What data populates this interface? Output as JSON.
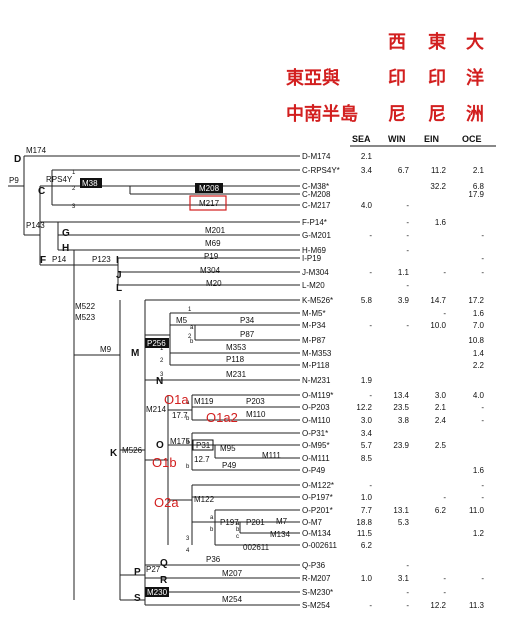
{
  "header": {
    "chinese_labels": [
      {
        "text": "東亞與",
        "color": "#d21f1f"
      },
      {
        "text": "中南半島",
        "color": "#d21f1f"
      },
      {
        "text": "西",
        "color": "#d21f1f"
      },
      {
        "text": "印",
        "color": "#d21f1f"
      },
      {
        "text": "尼",
        "color": "#d21f1f"
      },
      {
        "text": "東",
        "color": "#d21f1f"
      },
      {
        "text": "印",
        "color": "#d21f1f"
      },
      {
        "text": "尼",
        "color": "#d21f1f"
      },
      {
        "text": "大",
        "color": "#d21f1f"
      },
      {
        "text": "洋",
        "color": "#d21f1f"
      },
      {
        "text": "洲",
        "color": "#d21f1f"
      }
    ],
    "columns": [
      "SEA",
      "WIN",
      "EIN",
      "OCE"
    ]
  },
  "rows": [
    {
      "name": "D-M174",
      "sea": "2.1",
      "win": "",
      "ein": "",
      "oce": ""
    },
    {
      "name": "C-RPS4Y*",
      "sea": "3.4",
      "win": "6.7",
      "ein": "11.2",
      "oce": "2.1"
    },
    {
      "name": "C-M38*",
      "sea": "",
      "win": "",
      "ein": "32.2",
      "oce": "6.8"
    },
    {
      "name": "C-M208",
      "sea": "",
      "win": "",
      "ein": "",
      "oce": "17.9"
    },
    {
      "name": "C-M217",
      "sea": "4.0",
      "win": "-",
      "ein": "",
      "oce": ""
    },
    {
      "name": "F-P14*",
      "sea": "",
      "win": "-",
      "ein": "1.6",
      "oce": ""
    },
    {
      "name": "G-M201",
      "sea": "-",
      "win": "-",
      "ein": "",
      "oce": "-"
    },
    {
      "name": "H-M69",
      "sea": "",
      "win": "-",
      "ein": "",
      "oce": ""
    },
    {
      "name": "I-P19",
      "sea": "",
      "win": "",
      "ein": "",
      "oce": "-"
    },
    {
      "name": "J-M304",
      "sea": "-",
      "win": "1.1",
      "ein": "-",
      "oce": "-"
    },
    {
      "name": "L-M20",
      "sea": "",
      "win": "-",
      "ein": "",
      "oce": ""
    },
    {
      "name": "K-M526*",
      "sea": "5.8",
      "win": "3.9",
      "ein": "14.7",
      "oce": "17.2"
    },
    {
      "name": "M-M5*",
      "sea": "",
      "win": "",
      "ein": "-",
      "oce": "1.6"
    },
    {
      "name": "M-P34",
      "sea": "-",
      "win": "-",
      "ein": "10.0",
      "oce": "7.0"
    },
    {
      "name": "M-P87",
      "sea": "",
      "win": "",
      "ein": "",
      "oce": "10.8"
    },
    {
      "name": "M-M353",
      "sea": "",
      "win": "",
      "ein": "",
      "oce": "1.4"
    },
    {
      "name": "M-P118",
      "sea": "",
      "win": "",
      "ein": "",
      "oce": "2.2"
    },
    {
      "name": "N-M231",
      "sea": "1.9",
      "win": "",
      "ein": "",
      "oce": ""
    },
    {
      "name": "O-M119*",
      "sea": "-",
      "win": "13.4",
      "ein": "3.0",
      "oce": "4.0"
    },
    {
      "name": "O-P203",
      "sea": "12.2",
      "win": "23.5",
      "ein": "2.1",
      "oce": "-"
    },
    {
      "name": "O-M110",
      "sea": "3.0",
      "win": "3.8",
      "ein": "2.4",
      "oce": "-"
    },
    {
      "name": "O-P31*",
      "sea": "3.4",
      "win": "",
      "ein": "",
      "oce": ""
    },
    {
      "name": "O-M95*",
      "sea": "5.7",
      "win": "23.9",
      "ein": "2.5",
      "oce": ""
    },
    {
      "name": "O-M111",
      "sea": "8.5",
      "win": "",
      "ein": "",
      "oce": ""
    },
    {
      "name": "O-P49",
      "sea": "",
      "win": "",
      "ein": "",
      "oce": "1.6"
    },
    {
      "name": "O-M122*",
      "sea": "-",
      "win": "",
      "ein": "",
      "oce": "-"
    },
    {
      "name": "O-P197*",
      "sea": "1.0",
      "win": "",
      "ein": "-",
      "oce": "-"
    },
    {
      "name": "O-P201*",
      "sea": "7.7",
      "win": "13.1",
      "ein": "6.2",
      "oce": "11.0"
    },
    {
      "name": "O-M7",
      "sea": "18.8",
      "win": "5.3",
      "ein": "",
      "oce": ""
    },
    {
      "name": "O-M134",
      "sea": "11.5",
      "win": "",
      "ein": "",
      "oce": "1.2"
    },
    {
      "name": "O-002611",
      "sea": "6.2",
      "win": "",
      "ein": "",
      "oce": ""
    },
    {
      "name": "Q-P36",
      "sea": "",
      "win": "-",
      "ein": "",
      "oce": ""
    },
    {
      "name": "R-M207",
      "sea": "1.0",
      "win": "3.1",
      "ein": "-",
      "oce": "-"
    },
    {
      "name": "S-M230*",
      "sea": "",
      "win": "-",
      "ein": "-",
      "oce": ""
    },
    {
      "name": "S-M254",
      "sea": "-",
      "win": "-",
      "ein": "12.2",
      "oce": "11.3"
    }
  ],
  "tree": {
    "nodes": [
      "D",
      "C",
      "F",
      "G",
      "H",
      "I",
      "J",
      "L",
      "M",
      "N",
      "K",
      "O",
      "P",
      "Q",
      "R",
      "S"
    ],
    "markers": [
      "M174",
      "P9",
      "RPS4Y",
      "M38",
      "M208",
      "M217",
      "P143",
      "M201",
      "M69",
      "P14",
      "P123",
      "P19",
      "M304",
      "M20",
      "M522",
      "M523",
      "M5",
      "P34",
      "P87",
      "P256",
      "M353",
      "P118",
      "M9",
      "M231",
      "M119",
      "P203",
      "M110",
      "M214",
      "17.7",
      "M175",
      "P31",
      "M95",
      "M111",
      "12.7",
      "P49",
      "M526",
      "M122",
      "P197",
      "P201",
      "M7",
      "M134",
      "002611",
      "P27",
      "P36",
      "M207",
      "M230",
      "M254"
    ],
    "sub_letters": [
      "1",
      "2",
      "3",
      "1",
      "2",
      "1",
      "2",
      "3",
      "a",
      "b",
      "a",
      "b",
      "a",
      "b",
      "a",
      "b",
      "a",
      "b",
      "c",
      "3",
      "4"
    ],
    "annotations": [
      {
        "text": "O1a",
        "color": "#d21f1f"
      },
      {
        "text": "O1a2",
        "color": "#d21f1f"
      },
      {
        "text": "O1b",
        "color": "#d21f1f"
      },
      {
        "text": "O2a",
        "color": "#d21f1f"
      }
    ],
    "highlight_box_color": "#d21f1f"
  }
}
